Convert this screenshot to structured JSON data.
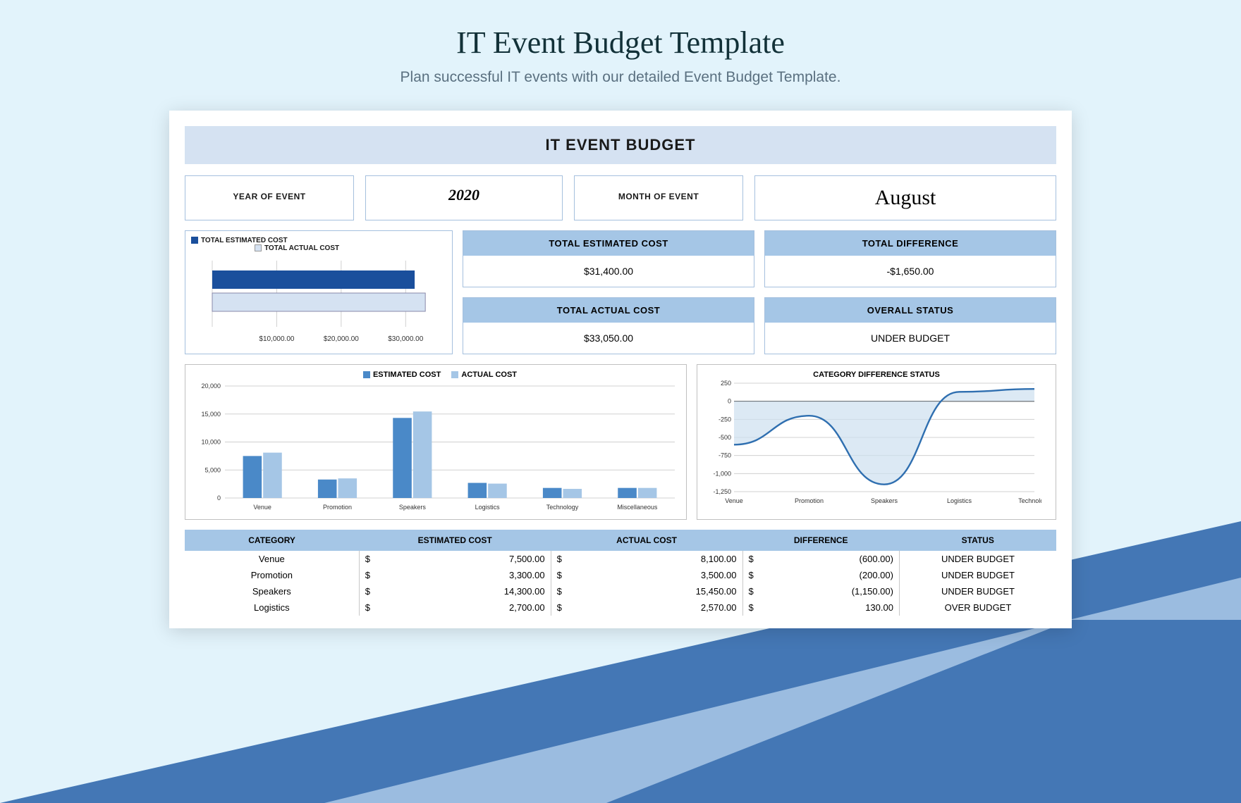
{
  "page": {
    "title": "IT Event Budget Template",
    "subtitle": "Plan successful IT events with our detailed Event Budget Template.",
    "bg_color": "#e2f3fb",
    "accent_light": "#9bbce0",
    "accent_dark": "#4477b5"
  },
  "sheet": {
    "banner": "IT EVENT BUDGET",
    "banner_bg": "#d5e2f2",
    "border_color": "#a5c0de",
    "header_bg": "#a5c6e6",
    "meta": {
      "year_label": "YEAR OF EVENT",
      "year_value": "2020",
      "month_label": "MONTH OF EVENT",
      "month_value": "August"
    },
    "hbar": {
      "legend_est": "TOTAL ESTIMATED COST",
      "legend_act": "TOTAL ACTUAL COST",
      "est_color": "#1a4f9c",
      "act_color": "#d5e2f2",
      "grid_color": "#d0d0d0",
      "max": 35000,
      "ticks": [
        "$10,000.00",
        "$20,000.00",
        "$30,000.00"
      ],
      "est_value": 31400,
      "act_value": 33050
    },
    "kpi": {
      "est_label": "TOTAL ESTIMATED COST",
      "est_value": "$31,400.00",
      "act_label": "TOTAL ACTUAL COST",
      "act_value": "$33,050.00",
      "diff_label": "TOTAL DIFFERENCE",
      "diff_value": "-$1,650.00",
      "status_label": "OVERALL STATUS",
      "status_value": "UNDER BUDGET"
    },
    "bar_chart": {
      "legend_est": "ESTIMATED COST",
      "legend_act": "ACTUAL COST",
      "est_color": "#4a89c8",
      "act_color": "#a5c6e6",
      "grid_color": "#d0d0d0",
      "ymax": 20000,
      "ytick_step": 5000,
      "yticks": [
        "0",
        "5,000",
        "10,000",
        "15,000",
        "20,000"
      ],
      "categories": [
        "Venue",
        "Promotion",
        "Speakers",
        "Logistics",
        "Technology",
        "Miscellaneous"
      ],
      "est": [
        7500,
        3300,
        14300,
        2700,
        1800,
        1800
      ],
      "act": [
        8100,
        3500,
        15450,
        2570,
        1630,
        1800
      ]
    },
    "line_chart": {
      "title": "CATEGORY DIFFERENCE STATUS",
      "line_color": "#2f6fb0",
      "fill_color": "#cddff0",
      "grid_color": "#d0d0d0",
      "baseline_color": "#333333",
      "ymax": 250,
      "ymin": -1250,
      "ytick_step": 250,
      "yticks": [
        "250",
        "0",
        "-250",
        "-500",
        "-750",
        "-1,000",
        "-1,250"
      ],
      "categories": [
        "Venue",
        "Promotion",
        "Speakers",
        "Logistics",
        "Technology"
      ],
      "values": [
        -600,
        -200,
        -1150,
        130,
        170
      ]
    },
    "table": {
      "headers": [
        "CATEGORY",
        "ESTIMATED COST",
        "ACTUAL COST",
        "DIFFERENCE",
        "STATUS"
      ],
      "rows": [
        {
          "cat": "Venue",
          "est": "7,500.00",
          "act": "8,100.00",
          "diff": "(600.00)",
          "status": "UNDER BUDGET"
        },
        {
          "cat": "Promotion",
          "est": "3,300.00",
          "act": "3,500.00",
          "diff": "(200.00)",
          "status": "UNDER BUDGET"
        },
        {
          "cat": "Speakers",
          "est": "14,300.00",
          "act": "15,450.00",
          "diff": "(1,150.00)",
          "status": "UNDER BUDGET"
        },
        {
          "cat": "Logistics",
          "est": "2,700.00",
          "act": "2,570.00",
          "diff": "130.00",
          "status": "OVER BUDGET"
        }
      ]
    }
  }
}
